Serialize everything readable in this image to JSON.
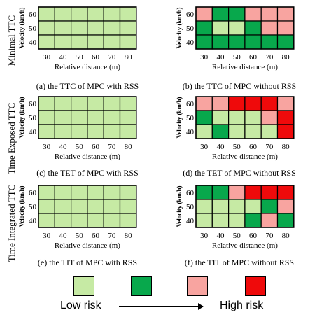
{
  "colors": {
    "1": "#c6eaa4",
    "2": "#08a84c",
    "3": "#f8a4a0",
    "4": "#ef0a0b"
  },
  "row_titles": [
    "Minimal TTC",
    "Time Exposed TTC",
    "Time Integrated TTC"
  ],
  "ylabel": "Velocity (km/h)",
  "xlabel": "Relative distance (m)",
  "chart_data": [
    {
      "type": "heatmap",
      "caption": "(a) the TTC of MPC with RSS",
      "x": [
        "30",
        "40",
        "50",
        "60",
        "70",
        "80"
      ],
      "y": [
        "60",
        "50",
        "40"
      ],
      "values": [
        [
          1,
          1,
          1,
          1,
          1,
          1
        ],
        [
          1,
          1,
          1,
          1,
          1,
          1
        ],
        [
          1,
          1,
          1,
          1,
          1,
          1
        ]
      ]
    },
    {
      "type": "heatmap",
      "caption": "(b) the TTC of MPC without RSS",
      "x": [
        "30",
        "40",
        "50",
        "60",
        "70",
        "80"
      ],
      "y": [
        "60",
        "50",
        "40"
      ],
      "values": [
        [
          3,
          2,
          2,
          3,
          3,
          3
        ],
        [
          2,
          1,
          1,
          2,
          3,
          3
        ],
        [
          2,
          2,
          2,
          2,
          2,
          2
        ]
      ]
    },
    {
      "type": "heatmap",
      "caption": "(c) the TET of MPC with RSS",
      "x": [
        "30",
        "40",
        "50",
        "60",
        "70",
        "80"
      ],
      "y": [
        "60",
        "50",
        "40"
      ],
      "values": [
        [
          1,
          1,
          1,
          1,
          1,
          1
        ],
        [
          1,
          1,
          1,
          1,
          1,
          1
        ],
        [
          1,
          1,
          1,
          1,
          1,
          1
        ]
      ]
    },
    {
      "type": "heatmap",
      "caption": "(d) the TET of MPC without RSS",
      "x": [
        "30",
        "40",
        "50",
        "60",
        "70",
        "80"
      ],
      "y": [
        "60",
        "50",
        "40"
      ],
      "values": [
        [
          3,
          3,
          4,
          4,
          4,
          3
        ],
        [
          2,
          1,
          1,
          1,
          3,
          4
        ],
        [
          1,
          2,
          1,
          1,
          1,
          4
        ]
      ]
    },
    {
      "type": "heatmap",
      "caption": "(e) the TIT of MPC with RSS",
      "x": [
        "30",
        "40",
        "50",
        "60",
        "70",
        "80"
      ],
      "y": [
        "60",
        "50",
        "40"
      ],
      "values": [
        [
          1,
          1,
          1,
          1,
          1,
          1
        ],
        [
          1,
          1,
          1,
          1,
          1,
          1
        ],
        [
          1,
          1,
          1,
          1,
          1,
          1
        ]
      ]
    },
    {
      "type": "heatmap",
      "caption": "(f) the TIT of MPC without RSS",
      "x": [
        "30",
        "40",
        "50",
        "60",
        "70",
        "80"
      ],
      "y": [
        "60",
        "50",
        "40"
      ],
      "values": [
        [
          2,
          2,
          3,
          4,
          4,
          4
        ],
        [
          1,
          1,
          1,
          1,
          2,
          3
        ],
        [
          1,
          1,
          1,
          2,
          3,
          2
        ]
      ]
    }
  ],
  "legend": {
    "low": "Low risk",
    "high": "High risk"
  }
}
